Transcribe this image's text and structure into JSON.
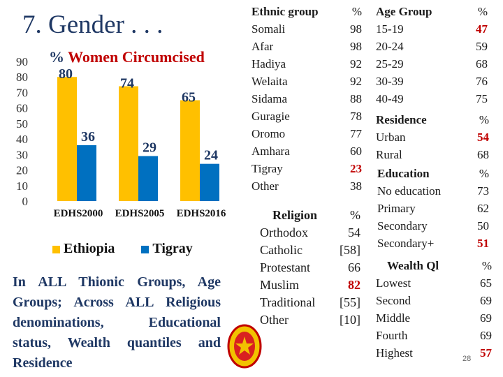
{
  "slide": {
    "title": "7. Gender . . .",
    "page_number": "28"
  },
  "chart_data": {
    "type": "bar",
    "title_prefix": "% ",
    "title_rest": "Women Circumcised",
    "categories": [
      "EDHS2000",
      "EDHS2005",
      "EDHS2016"
    ],
    "series": [
      {
        "name": "Ethiopia",
        "values": [
          80,
          74,
          65
        ],
        "color": "#ffc000"
      },
      {
        "name": "Tigray",
        "values": [
          36,
          29,
          24
        ],
        "color": "#0070c0"
      }
    ],
    "ylim": [
      0,
      90
    ],
    "yticks": [
      "0",
      "10",
      "20",
      "30",
      "40",
      "50",
      "60",
      "70",
      "80",
      "90"
    ],
    "data_labels": [
      [
        "80",
        "74",
        "65"
      ],
      [
        "36",
        "29",
        "24"
      ]
    ],
    "legend_position": "bottom",
    "grid": false
  },
  "summary_text": "In ALL Thionic Groups, Age Groups; Across ALL Religious denominations, Educational status, Wealth quantiles and Residence",
  "ethnic": {
    "header": "Ethnic group",
    "pct": "%",
    "rows": [
      {
        "label": "Somali",
        "value": "98"
      },
      {
        "label": "Afar",
        "value": "98"
      },
      {
        "label": "Hadiya",
        "value": "92"
      },
      {
        "label": "Welaita",
        "value": "92"
      },
      {
        "label": "Sidama",
        "value": "88"
      },
      {
        "label": "Guragie",
        "value": "78"
      },
      {
        "label": "Oromo",
        "value": "77"
      },
      {
        "label": "Amhara",
        "value": "60"
      },
      {
        "label": "Tigray",
        "value": "23"
      },
      {
        "label": "Other",
        "value": "38"
      }
    ]
  },
  "religion": {
    "header": "Religion",
    "pct": "%",
    "rows": [
      {
        "label": "Orthodox",
        "value": "54"
      },
      {
        "label": "Catholic",
        "value": "[58]"
      },
      {
        "label": "Protestant",
        "value": "66"
      },
      {
        "label": "Muslim",
        "value": "82"
      },
      {
        "label": "Traditional",
        "value": "[55]"
      },
      {
        "label": "Other",
        "value": "[10]"
      }
    ]
  },
  "age": {
    "header": "Age Group",
    "pct": "%",
    "rows": [
      {
        "label": "15-19",
        "value": "47"
      },
      {
        "label": "20-24",
        "value": "59"
      },
      {
        "label": "25-29",
        "value": "68"
      },
      {
        "label": "30-39",
        "value": "76"
      },
      {
        "label": "40-49",
        "value": "75"
      }
    ]
  },
  "residence": {
    "header": "Residence",
    "pct": "%",
    "rows": [
      {
        "label": "Urban",
        "value": "54"
      },
      {
        "label": "Rural",
        "value": "68"
      }
    ]
  },
  "education": {
    "header": "Education",
    "pct": "%",
    "rows": [
      {
        "label": "No education",
        "value": "73"
      },
      {
        "label": "Primary",
        "value": "62"
      },
      {
        "label": "Secondary",
        "value": "50"
      },
      {
        "label": "Secondary+",
        "value": "51"
      }
    ]
  },
  "wealth": {
    "header": "Wealth Ql",
    "pct": "%",
    "rows": [
      {
        "label": "Lowest",
        "value": "65"
      },
      {
        "label": "Second",
        "value": "69"
      },
      {
        "label": "Middle",
        "value": "69"
      },
      {
        "label": "Fourth",
        "value": "69"
      },
      {
        "label": "Highest",
        "value": "57"
      }
    ]
  },
  "colors": {
    "title": "#1f3864",
    "highlight": "#c00000",
    "ethiopia": "#ffc000",
    "tigray": "#0070c0"
  },
  "icons": {
    "seal": "emblem-seal-icon"
  }
}
